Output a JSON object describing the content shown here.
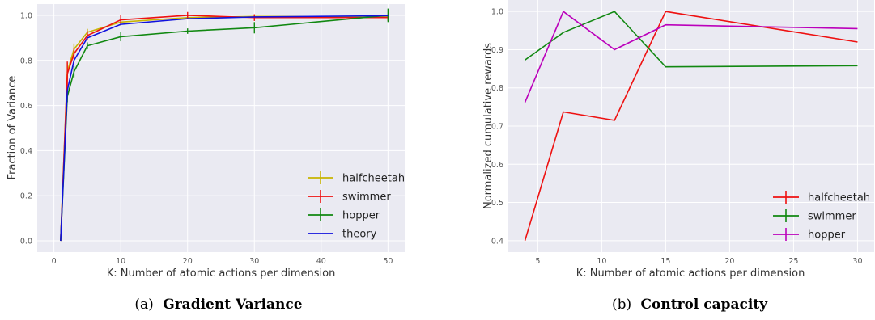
{
  "chart_data": [
    {
      "type": "line",
      "caption_prefix": "(a)",
      "caption_title": "Gradient Variance",
      "xlabel": "K: Number of atomic actions per dimension",
      "ylabel": "Fraction of Variance",
      "xlim": [
        -2.5,
        52.5
      ],
      "ylim": [
        -0.05,
        1.05
      ],
      "xticks": [
        0,
        10,
        20,
        30,
        40,
        50
      ],
      "yticks": [
        0.0,
        0.2,
        0.4,
        0.6,
        0.8,
        1.0
      ],
      "ytick_labels": [
        "0.0",
        "0.2",
        "0.4",
        "0.6",
        "0.8",
        "1.0"
      ],
      "grid": true,
      "legend_position": "bottom-right",
      "error_bars": true,
      "series": [
        {
          "name": "halfcheetah",
          "color": "#c8b400",
          "x": [
            1,
            2,
            3,
            5,
            10,
            20,
            30,
            50
          ],
          "y": [
            0.0,
            0.75,
            0.85,
            0.925,
            0.97,
            0.99,
            0.995,
            0.995
          ],
          "err": [
            0.0,
            0.04,
            0.025,
            0.015,
            0.015,
            0.008,
            0.008,
            0.008
          ]
        },
        {
          "name": "swimmer",
          "color": "#ee1111",
          "x": [
            1,
            2,
            3,
            5,
            10,
            20,
            30,
            50
          ],
          "y": [
            0.0,
            0.74,
            0.83,
            0.91,
            0.98,
            1.0,
            0.99,
            0.99
          ],
          "err": [
            0.0,
            0.055,
            0.025,
            0.02,
            0.02,
            0.015,
            0.015,
            0.015
          ]
        },
        {
          "name": "hopper",
          "color": "#118811",
          "x": [
            1,
            2,
            3,
            5,
            10,
            20,
            30,
            50
          ],
          "y": [
            0.0,
            0.64,
            0.75,
            0.865,
            0.905,
            0.93,
            0.945,
            1.0
          ],
          "err": [
            0.0,
            0.025,
            0.025,
            0.015,
            0.02,
            0.012,
            0.025,
            0.03
          ]
        },
        {
          "name": "theory",
          "color": "#1111dd",
          "x": [
            1,
            2,
            3,
            5,
            10,
            20,
            30,
            50
          ],
          "y": [
            0.0,
            0.667,
            0.8,
            0.9,
            0.96,
            0.985,
            0.993,
            0.998
          ]
        }
      ]
    },
    {
      "type": "line",
      "caption_prefix": "(b)",
      "caption_title": "Control capacity",
      "xlabel": "K: Number of atomic actions per dimension",
      "ylabel": "Normalized cumulative rewards",
      "xlim": [
        2.7,
        31.3
      ],
      "ylim": [
        0.37,
        1.03
      ],
      "xticks": [
        5,
        10,
        15,
        20,
        25,
        30
      ],
      "yticks": [
        0.4,
        0.5,
        0.6,
        0.7,
        0.8,
        0.9,
        1.0
      ],
      "ytick_labels": [
        "0.4",
        "0.5",
        "0.6",
        "0.7",
        "0.8",
        "0.9",
        "1.0"
      ],
      "grid": true,
      "legend_position": "bottom-right",
      "series": [
        {
          "name": "halfcheetah",
          "color": "#ee1111",
          "x": [
            4,
            7,
            11,
            15,
            30
          ],
          "y": [
            0.4,
            0.737,
            0.715,
            1.0,
            0.92
          ]
        },
        {
          "name": "swimmer",
          "color": "#118811",
          "x": [
            4,
            7,
            11,
            15,
            30
          ],
          "y": [
            0.873,
            0.945,
            1.0,
            0.855,
            0.858
          ]
        },
        {
          "name": "hopper",
          "color": "#bb00bb",
          "x": [
            4,
            7,
            11,
            15,
            30
          ],
          "y": [
            0.762,
            1.0,
            0.9,
            0.965,
            0.955
          ]
        }
      ]
    }
  ]
}
